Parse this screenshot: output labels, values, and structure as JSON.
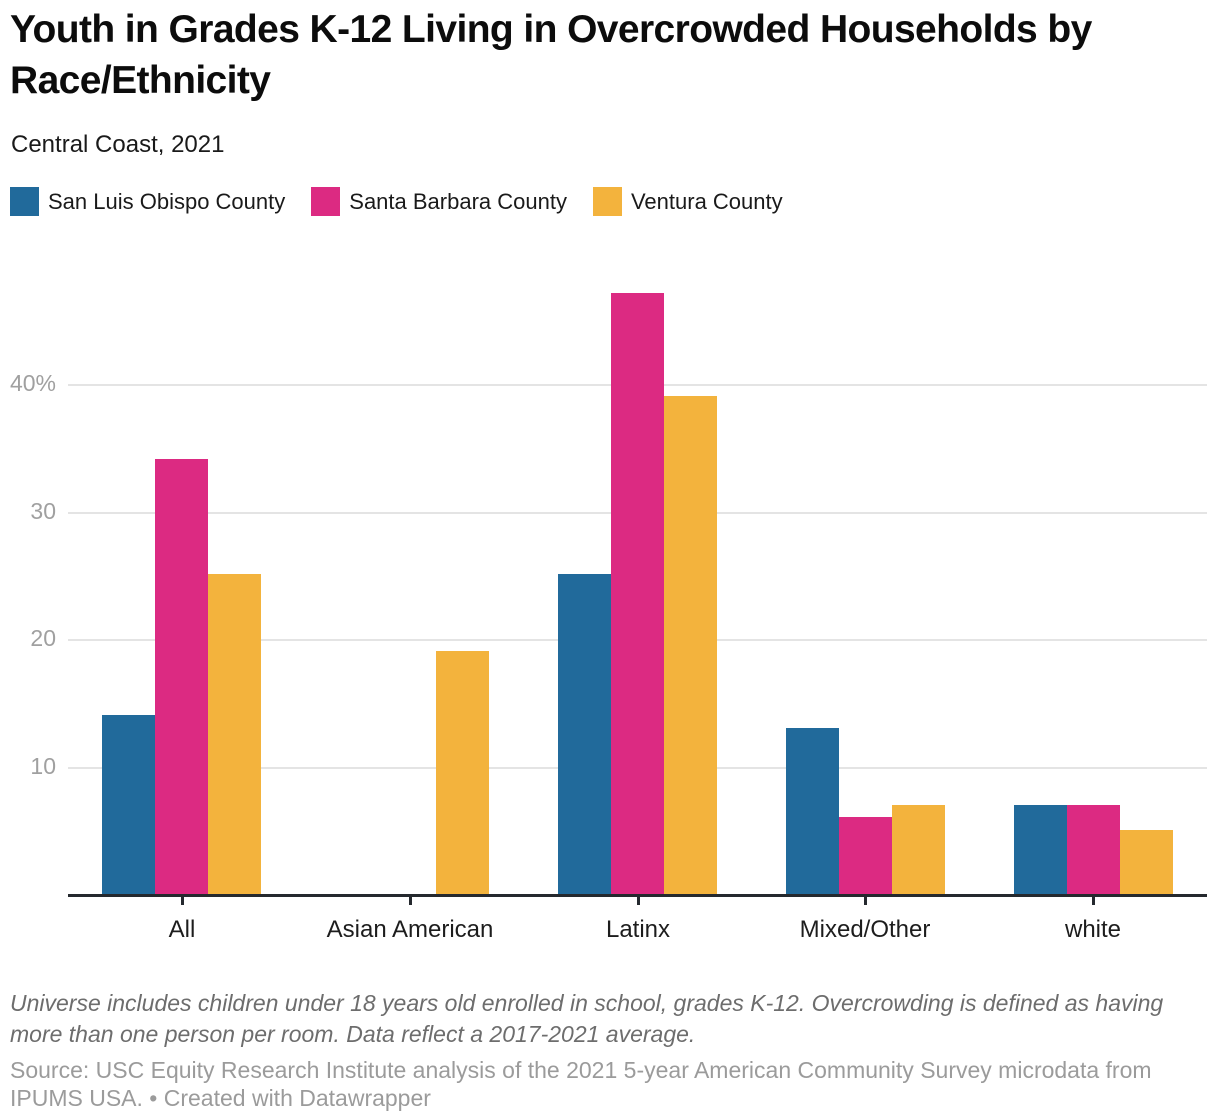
{
  "header": {
    "title": "Youth in Grades K-12 Living in Overcrowded Households by Race/Ethnicity",
    "subtitle": "Central Coast, 2021"
  },
  "legend": {
    "items": [
      {
        "label": "San Luis Obispo County",
        "color": "#216a9b"
      },
      {
        "label": "Santa Barbara County",
        "color": "#dc2a82"
      },
      {
        "label": "Ventura County",
        "color": "#f3b33d"
      }
    ]
  },
  "chart_data": {
    "type": "bar",
    "title": "Youth in Grades K-12 Living in Overcrowded Households by Race/Ethnicity",
    "subtitle": "Central Coast, 2021",
    "categories": [
      "All",
      "Asian American",
      "Latinx",
      "Mixed/Other",
      "white"
    ],
    "series": [
      {
        "name": "San Luis Obispo County",
        "color": "#216a9b",
        "values": [
          14,
          0,
          25,
          13,
          7
        ]
      },
      {
        "name": "Santa Barbara County",
        "color": "#dc2a82",
        "values": [
          34,
          0,
          47,
          6,
          7
        ]
      },
      {
        "name": "Ventura County",
        "color": "#f3b33d",
        "values": [
          25,
          19,
          39,
          7,
          5
        ]
      }
    ],
    "unit": "%",
    "ylim": [
      0,
      48
    ],
    "yticks": [
      {
        "value": 10,
        "label": "10"
      },
      {
        "value": 20,
        "label": "20"
      },
      {
        "value": 30,
        "label": "30"
      },
      {
        "value": 40,
        "label": "40%"
      }
    ],
    "grid": true,
    "legend_position": "top"
  },
  "footnote": "Universe includes children under 18 years old enrolled in school, grades K-12. Overcrowding is defined as having more than one person per room. Data reflect a 2017-2021 average.",
  "source": "Source: USC Equity Research Institute analysis of the 2021 5-year American Community Survey microdata from IPUMS USA. • Created with Datawrapper"
}
